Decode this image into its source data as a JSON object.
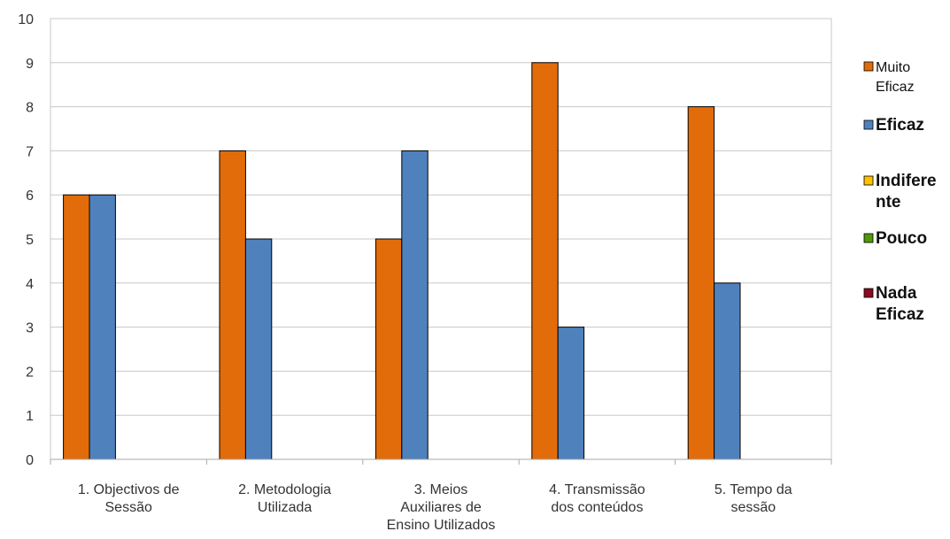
{
  "chart_data": {
    "type": "bar",
    "categories": [
      [
        "1. Objectivos de",
        "Sessão"
      ],
      [
        "2. Metodologia",
        "Utilizada"
      ],
      [
        "3. Meios",
        "Auxiliares de",
        "Ensino Utilizados"
      ],
      [
        "4. Transmissão",
        "dos conteúdos"
      ],
      [
        "5. Tempo da",
        "sessão"
      ]
    ],
    "series": [
      {
        "name": "Muito Eficaz",
        "legend_lines": [
          "Muito",
          "Eficaz"
        ],
        "legend_style": "regular",
        "color": "#E36C0A",
        "values": [
          6,
          7,
          5,
          9,
          8
        ]
      },
      {
        "name": "Eficaz",
        "legend_lines": [
          "Eficaz"
        ],
        "legend_style": "bold",
        "color": "#4F81BD",
        "values": [
          6,
          5,
          7,
          3,
          4
        ]
      },
      {
        "name": "Indiferente",
        "legend_lines": [
          "Indifere",
          "nte"
        ],
        "legend_style": "bold",
        "color": "#FFC000",
        "values": [
          0,
          0,
          0,
          0,
          0
        ]
      },
      {
        "name": "Pouco",
        "legend_lines": [
          "Pouco"
        ],
        "legend_style": "bold",
        "color": "#4E9A06",
        "values": [
          0,
          0,
          0,
          0,
          0
        ]
      },
      {
        "name": "Nada Eficaz",
        "legend_lines": [
          "Nada",
          "Eficaz"
        ],
        "legend_style": "bold",
        "color": "#8B0A1F",
        "values": [
          0,
          0,
          0,
          0,
          0
        ]
      }
    ],
    "title": "",
    "xlabel": "",
    "ylabel": "",
    "ylim": [
      0,
      10
    ],
    "yticks": [
      "0",
      "1",
      "2",
      "3",
      "4",
      "5",
      "6",
      "7",
      "8",
      "9",
      "10"
    ],
    "grid": true,
    "legend_position": "right"
  }
}
